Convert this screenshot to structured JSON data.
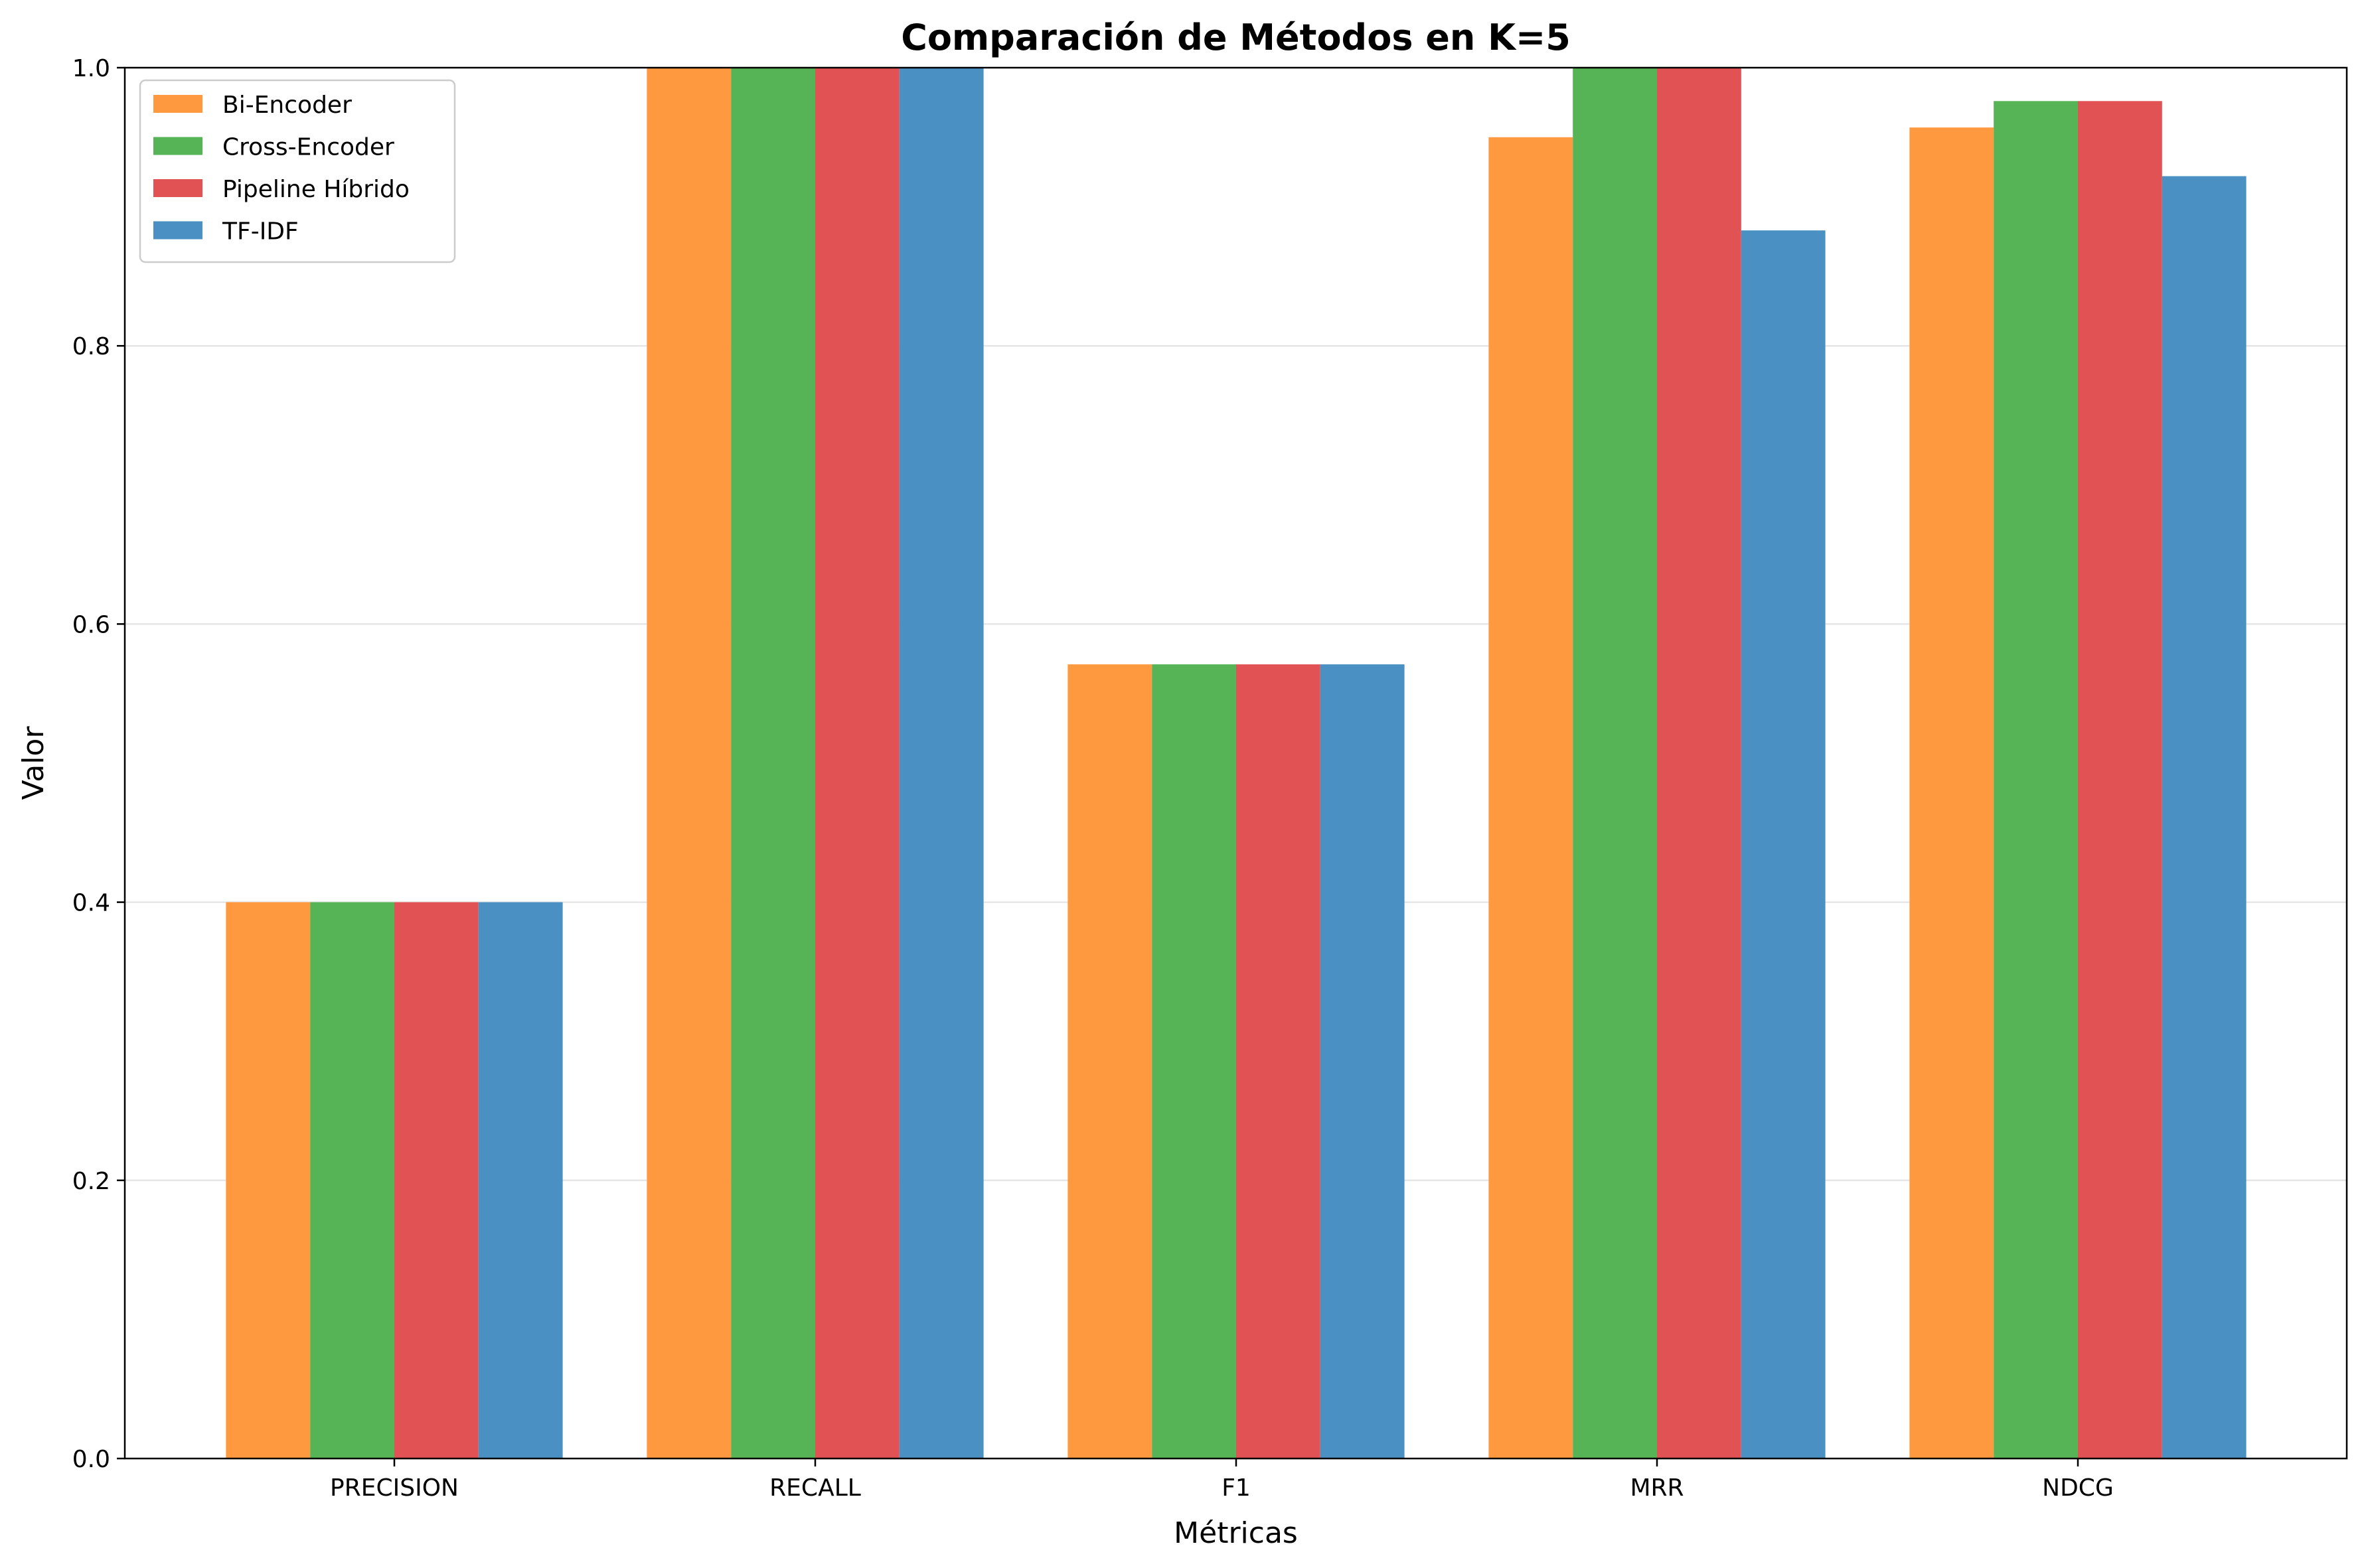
{
  "chart_data": {
    "type": "bar",
    "title": "Comparación de Métodos en K=5",
    "xlabel": "Métricas",
    "ylabel": "Valor",
    "ylim": [
      0,
      1.0
    ],
    "yticks": [
      "0.0",
      "0.2",
      "0.4",
      "0.6",
      "0.8",
      "1.0"
    ],
    "categories": [
      "PRECISION",
      "RECALL",
      "F1",
      "MRR",
      "NDCG"
    ],
    "grid": "horizontal",
    "legend_position": "top-left",
    "series": [
      {
        "name": "Bi-Encoder",
        "color": "#ff9940",
        "values": [
          0.4,
          1.0,
          0.571,
          0.95,
          0.957
        ]
      },
      {
        "name": "Cross-Encoder",
        "color": "#56b356",
        "values": [
          0.4,
          1.0,
          0.571,
          1.0,
          0.976
        ]
      },
      {
        "name": "Pipeline Híbrido",
        "color": "#e05254",
        "values": [
          0.4,
          1.0,
          0.571,
          1.0,
          0.976
        ]
      },
      {
        "name": "TF-IDF",
        "color": "#4a90c2",
        "values": [
          0.4,
          1.0,
          0.571,
          0.883,
          0.922
        ]
      }
    ]
  }
}
